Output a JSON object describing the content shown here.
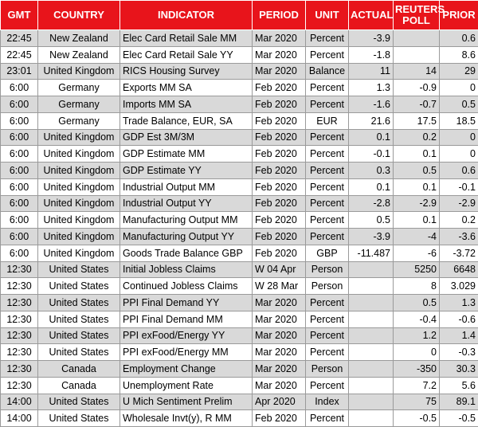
{
  "table": {
    "header": [
      "GMT",
      "COUNTRY",
      "INDICATOR",
      "PERIOD",
      "UNIT",
      "ACTUAL",
      "REUTERS POLL",
      "PRIOR"
    ],
    "rows": [
      [
        "22:45",
        "New Zealand",
        "Elec Card Retail Sale MM",
        "Mar 2020",
        "Percent",
        "-3.9",
        null,
        "0.6"
      ],
      [
        "22:45",
        "New Zealand",
        "Elec Card Retail Sale YY",
        "Mar 2020",
        "Percent",
        "-1.8",
        null,
        "8.6"
      ],
      [
        "23:01",
        "United Kingdom",
        "RICS Housing Survey",
        "Mar 2020",
        "Balance",
        "11",
        "14",
        "29"
      ],
      [
        "6:00",
        "Germany",
        "Exports MM SA",
        "Feb 2020",
        "Percent",
        "1.3",
        "-0.9",
        "0"
      ],
      [
        "6:00",
        "Germany",
        "Imports MM SA",
        "Feb 2020",
        "Percent",
        "-1.6",
        "-0.7",
        "0.5"
      ],
      [
        "6:00",
        "Germany",
        "Trade Balance, EUR, SA",
        "Feb 2020",
        "EUR",
        "21.6",
        "17.5",
        "18.5"
      ],
      [
        "6:00",
        "United Kingdom",
        "GDP Est 3M/3M",
        "Feb 2020",
        "Percent",
        "0.1",
        "0.2",
        "0"
      ],
      [
        "6:00",
        "United Kingdom",
        "GDP Estimate MM",
        "Feb 2020",
        "Percent",
        "-0.1",
        "0.1",
        "0"
      ],
      [
        "6:00",
        "United Kingdom",
        "GDP Estimate YY",
        "Feb 2020",
        "Percent",
        "0.3",
        "0.5",
        "0.6"
      ],
      [
        "6:00",
        "United Kingdom",
        "Industrial Output MM",
        "Feb 2020",
        "Percent",
        "0.1",
        "0.1",
        "-0.1"
      ],
      [
        "6:00",
        "United Kingdom",
        "Industrial Output YY",
        "Feb 2020",
        "Percent",
        "-2.8",
        "-2.9",
        "-2.9"
      ],
      [
        "6:00",
        "United Kingdom",
        "Manufacturing Output MM",
        "Feb 2020",
        "Percent",
        "0.5",
        "0.1",
        "0.2"
      ],
      [
        "6:00",
        "United Kingdom",
        "Manufacturing Output YY",
        "Feb 2020",
        "Percent",
        "-3.9",
        "-4",
        "-3.6"
      ],
      [
        "6:00",
        "United Kingdom",
        "Goods Trade Balance GBP",
        "Feb 2020",
        "GBP",
        "-11.487",
        "-6",
        "-3.72"
      ],
      [
        "12:30",
        "United States",
        "Initial Jobless Claims",
        "W 04 Apr",
        "Person",
        null,
        "5250",
        "6648"
      ],
      [
        "12:30",
        "United States",
        "Continued Jobless Claims",
        "W 28 Mar",
        "Person",
        null,
        "8",
        "3.029"
      ],
      [
        "12:30",
        "United States",
        "PPI Final Demand YY",
        "Mar 2020",
        "Percent",
        null,
        "0.5",
        "1.3"
      ],
      [
        "12:30",
        "United States",
        "PPI Final Demand MM",
        "Mar 2020",
        "Percent",
        null,
        "-0.4",
        "-0.6"
      ],
      [
        "12:30",
        "United States",
        "PPI exFood/Energy YY",
        "Mar 2020",
        "Percent",
        null,
        "1.2",
        "1.4"
      ],
      [
        "12:30",
        "United States",
        "PPI exFood/Energy MM",
        "Mar 2020",
        "Percent",
        null,
        "0",
        "-0.3"
      ],
      [
        "12:30",
        "Canada",
        "Employment Change",
        "Mar 2020",
        "Person",
        null,
        "-350",
        "30.3"
      ],
      [
        "12:30",
        "Canada",
        "Unemployment Rate",
        "Mar 2020",
        "Percent",
        null,
        "7.2",
        "5.6"
      ],
      [
        "14:00",
        "United States",
        "U Mich Sentiment Prelim",
        "Apr 2020",
        "Index",
        null,
        "75",
        "89.1"
      ],
      [
        "14:00",
        "United States",
        "Wholesale Invt(y), R MM",
        "Feb 2020",
        "Percent",
        null,
        "-0.5",
        "-0.5"
      ]
    ]
  }
}
